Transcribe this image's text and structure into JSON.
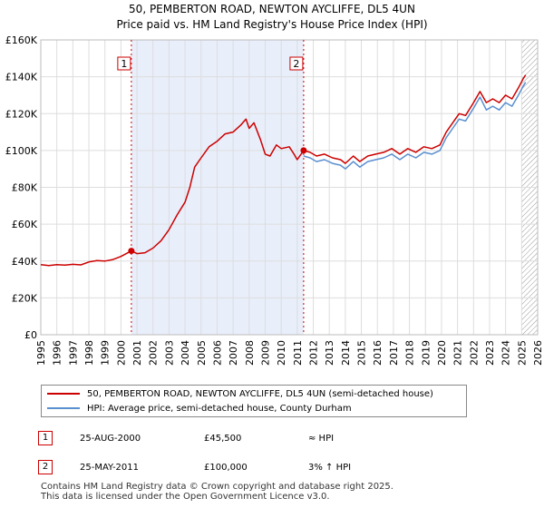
{
  "chart_data": {
    "type": "line",
    "title": "50, PEMBERTON ROAD, NEWTON AYCLIFFE, DL5 4UN",
    "subtitle": "Price paid vs. HM Land Registry's House Price Index (HPI)",
    "xlim": [
      1995,
      2026
    ],
    "ylim": [
      0,
      160000
    ],
    "x_ticks": [
      "1995",
      "1996",
      "1997",
      "1998",
      "1999",
      "2000",
      "2001",
      "2002",
      "2003",
      "2004",
      "2005",
      "2006",
      "2007",
      "2008",
      "2009",
      "2010",
      "2011",
      "2012",
      "2013",
      "2014",
      "2015",
      "2016",
      "2017",
      "2018",
      "2019",
      "2020",
      "2021",
      "2022",
      "2023",
      "2024",
      "2025",
      "2026"
    ],
    "y_ticks": [
      {
        "value": 0,
        "label": "£0"
      },
      {
        "value": 20000,
        "label": "£20K"
      },
      {
        "value": 40000,
        "label": "£40K"
      },
      {
        "value": 60000,
        "label": "£60K"
      },
      {
        "value": 80000,
        "label": "£80K"
      },
      {
        "value": 100000,
        "label": "£100K"
      },
      {
        "value": 120000,
        "label": "£120K"
      },
      {
        "value": 140000,
        "label": "£140K"
      },
      {
        "value": 160000,
        "label": "£160K"
      }
    ],
    "shaded_range": [
      2000.65,
      2011.4
    ],
    "future_hatch_from": 2025.0,
    "series": [
      {
        "name": "50, PEMBERTON ROAD, NEWTON AYCLIFFE, DL5 4UN (semi-detached house)",
        "color": "#cc0000",
        "points": [
          [
            1995.0,
            38000
          ],
          [
            1995.5,
            37500
          ],
          [
            1996.0,
            38000
          ],
          [
            1996.5,
            37800
          ],
          [
            1997.0,
            38200
          ],
          [
            1997.5,
            37900
          ],
          [
            1998.0,
            39500
          ],
          [
            1998.5,
            40200
          ],
          [
            1999.0,
            40000
          ],
          [
            1999.5,
            40800
          ],
          [
            2000.0,
            42500
          ],
          [
            2000.65,
            45500
          ],
          [
            2001.0,
            44000
          ],
          [
            2001.5,
            44500
          ],
          [
            2002.0,
            47000
          ],
          [
            2002.5,
            51000
          ],
          [
            2003.0,
            57000
          ],
          [
            2003.5,
            65000
          ],
          [
            2004.0,
            72000
          ],
          [
            2004.3,
            80000
          ],
          [
            2004.6,
            91000
          ],
          [
            2005.0,
            96000
          ],
          [
            2005.5,
            102000
          ],
          [
            2006.0,
            105000
          ],
          [
            2006.5,
            109000
          ],
          [
            2007.0,
            110000
          ],
          [
            2007.5,
            114000
          ],
          [
            2007.8,
            117000
          ],
          [
            2008.0,
            112000
          ],
          [
            2008.3,
            115000
          ],
          [
            2008.7,
            106000
          ],
          [
            2009.0,
            98000
          ],
          [
            2009.3,
            97000
          ],
          [
            2009.7,
            103000
          ],
          [
            2010.0,
            101000
          ],
          [
            2010.5,
            102000
          ],
          [
            2010.8,
            98000
          ],
          [
            2011.0,
            95000
          ],
          [
            2011.4,
            100000
          ],
          [
            2011.8,
            99000
          ],
          [
            2012.2,
            97000
          ],
          [
            2012.7,
            98000
          ],
          [
            2013.2,
            96000
          ],
          [
            2013.7,
            95000
          ],
          [
            2014.0,
            93000
          ],
          [
            2014.5,
            97000
          ],
          [
            2014.9,
            94000
          ],
          [
            2015.4,
            97000
          ],
          [
            2015.9,
            98000
          ],
          [
            2016.4,
            99000
          ],
          [
            2016.9,
            101000
          ],
          [
            2017.4,
            98000
          ],
          [
            2017.9,
            101000
          ],
          [
            2018.4,
            99000
          ],
          [
            2018.9,
            102000
          ],
          [
            2019.4,
            101000
          ],
          [
            2019.9,
            103000
          ],
          [
            2020.3,
            110000
          ],
          [
            2020.7,
            115000
          ],
          [
            2021.1,
            120000
          ],
          [
            2021.5,
            119000
          ],
          [
            2022.0,
            126000
          ],
          [
            2022.4,
            132000
          ],
          [
            2022.8,
            126000
          ],
          [
            2023.2,
            128000
          ],
          [
            2023.6,
            126000
          ],
          [
            2024.0,
            130000
          ],
          [
            2024.4,
            128000
          ],
          [
            2024.8,
            134000
          ],
          [
            2025.1,
            139000
          ],
          [
            2025.25,
            141000
          ]
        ]
      },
      {
        "name": "HPI: Average price, semi-detached house, County Durham",
        "color": "#5a8fd0",
        "points": [
          [
            2011.4,
            97000
          ],
          [
            2011.8,
            96000
          ],
          [
            2012.2,
            94000
          ],
          [
            2012.7,
            95000
          ],
          [
            2013.2,
            93000
          ],
          [
            2013.7,
            92000
          ],
          [
            2014.0,
            90000
          ],
          [
            2014.5,
            94000
          ],
          [
            2014.9,
            91000
          ],
          [
            2015.4,
            94000
          ],
          [
            2015.9,
            95000
          ],
          [
            2016.4,
            96000
          ],
          [
            2016.9,
            98000
          ],
          [
            2017.4,
            95000
          ],
          [
            2017.9,
            98000
          ],
          [
            2018.4,
            96000
          ],
          [
            2018.9,
            99000
          ],
          [
            2019.4,
            98000
          ],
          [
            2019.9,
            100000
          ],
          [
            2020.3,
            107000
          ],
          [
            2020.7,
            112000
          ],
          [
            2021.1,
            117000
          ],
          [
            2021.5,
            116000
          ],
          [
            2022.0,
            123000
          ],
          [
            2022.4,
            129000
          ],
          [
            2022.8,
            122000
          ],
          [
            2023.2,
            124000
          ],
          [
            2023.6,
            122000
          ],
          [
            2024.0,
            126000
          ],
          [
            2024.4,
            124000
          ],
          [
            2024.8,
            130000
          ],
          [
            2025.1,
            135000
          ],
          [
            2025.25,
            137000
          ]
        ]
      }
    ],
    "markers": [
      {
        "label": "1",
        "x": 2000.65,
        "y": 45500
      },
      {
        "label": "2",
        "x": 2011.4,
        "y": 100000
      }
    ]
  },
  "legend": {
    "property_label": "50, PEMBERTON ROAD, NEWTON AYCLIFFE, DL5 4UN (semi-detached house)",
    "hpi_label": "HPI: Average price, semi-detached house, County Durham"
  },
  "sales": [
    {
      "num": "1",
      "date": "25-AUG-2000",
      "price": "£45,500",
      "relation": "≈ HPI"
    },
    {
      "num": "2",
      "date": "25-MAY-2011",
      "price": "£100,000",
      "relation": "3% ↑ HPI"
    }
  ],
  "footer": {
    "line1": "Contains HM Land Registry data © Crown copyright and database right 2025.",
    "line2": "This data is licensed under the Open Government Licence v3.0."
  }
}
